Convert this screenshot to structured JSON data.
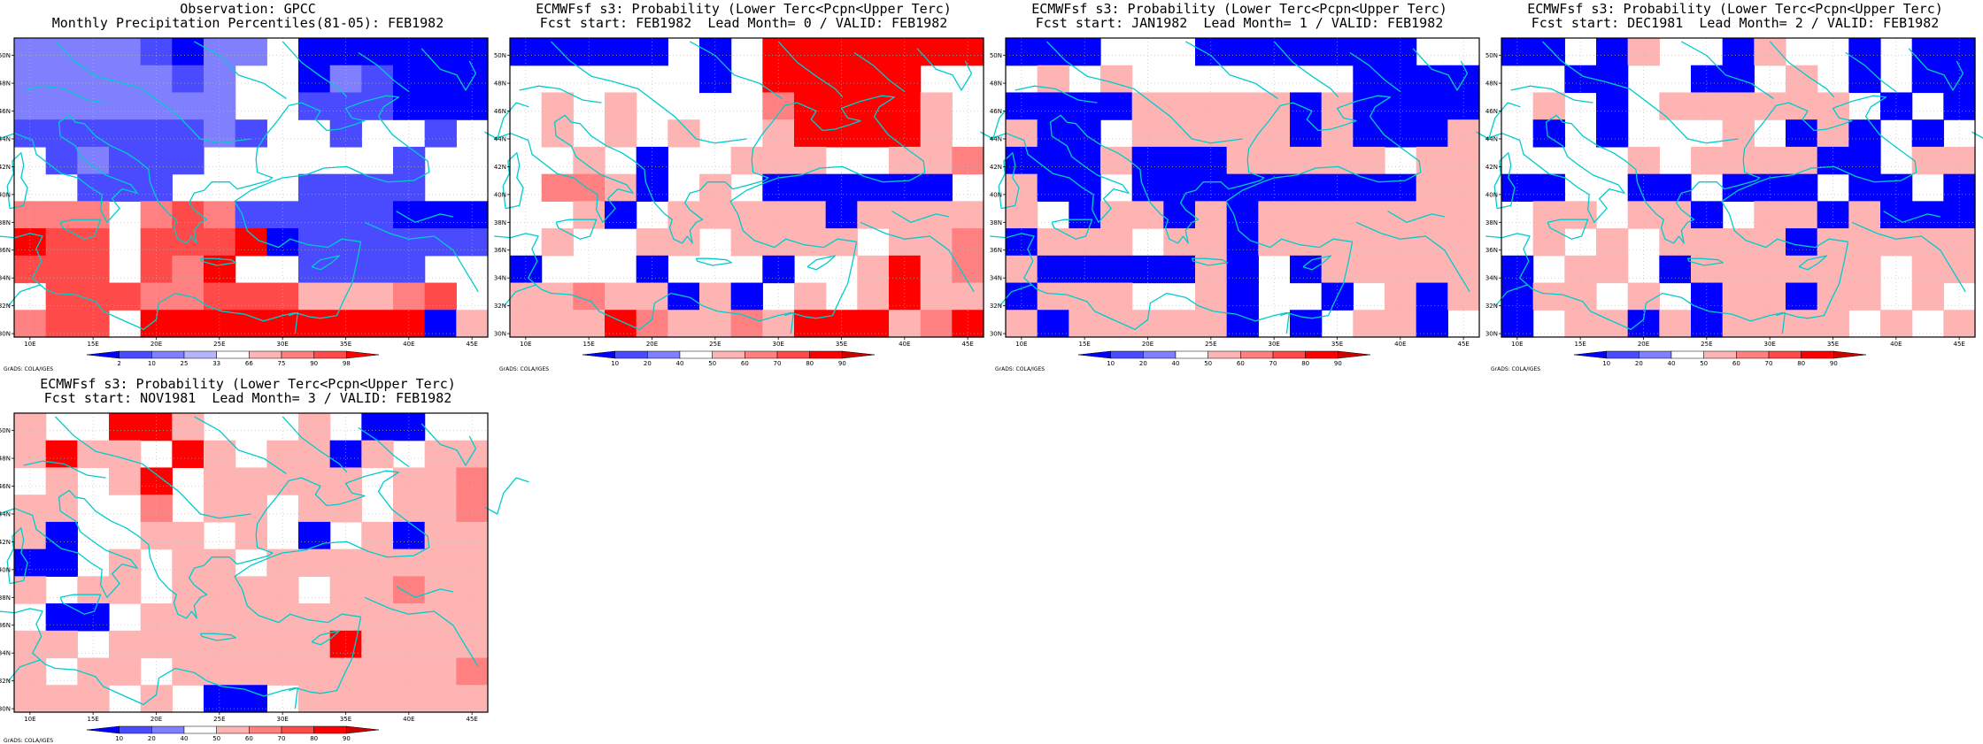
{
  "palette": {
    "blue_dark": "#0000ff",
    "blue_mid": "#4a4aff",
    "blue_light": "#8080ff",
    "blue_pale": "#b4b4ff",
    "red_pale": "#ffb4b4",
    "red_light": "#ff8080",
    "red_mid": "#ff4a4a",
    "red_dark": "#ff0000",
    "coast": "#00cccc",
    "grid": "#bbbbbb"
  },
  "x_ticks": [
    "10E",
    "15E",
    "20E",
    "25E",
    "30E",
    "35E",
    "40E",
    "45E"
  ],
  "y_ticks": [
    "50N",
    "48N",
    "46N",
    "44N",
    "42N",
    "40N",
    "38N",
    "36N",
    "34N",
    "32N",
    "30N"
  ],
  "credit": "GrADS: COLA/IGES",
  "panels": [
    {
      "id": "obs",
      "title1": "Observation: GPCC",
      "title2": "Monthly Precipitation Percentiles(81-05): FEB1982",
      "legend_labels": [
        "2",
        "10",
        "25",
        "33",
        "66",
        "75",
        "90",
        "98"
      ],
      "legend_colors": [
        "#0000ff",
        "#4a4aff",
        "#8080ff",
        "#b4b4ff",
        "#ffffff",
        "#ffb4b4",
        "#ff8080",
        "#ff4a4a",
        "#ff0000"
      ],
      "grid": [
        "ccccbacc0aaaaaa",
        "cccccbc00acbaaa",
        "ccccccc00bbbaaa",
        "bbbbbbcb00b00b0",
        "0bcbbb000000b00",
        "00bbb0000bbbb00",
        "ggg0ghgbbbbbaaa",
        "ihh0hhhiabbbbbb",
        "hhh0hgi00bbbb00",
        "0hhhgghhhfffgh0",
        "ghh0iiiiiiiiiaf"
      ]
    },
    {
      "id": "lead0",
      "title1": "ECMWFsf s3: Probability (Lower Terc<Pcpn<Upper Terc)",
      "title2": "Fcst start: FEB1982  Lead Month= 0 / VALID: FEB1982",
      "legend_labels": [
        "10",
        "20",
        "40",
        "50",
        "60",
        "70",
        "80",
        "90"
      ],
      "legend_colors": [
        "#0000ff",
        "#4a4aff",
        "#8080ff",
        "#ffffff",
        "#ffb4b4",
        "#ff8080",
        "#ff4a4a",
        "#ff0000",
        "#cc0000"
      ],
      "grid": [
        "ccccc0c0hhhhhhh",
        "000000c0hhhhh00",
        "0f0f0000ghhhhf0",
        "0f0f0f00fhhhhf0",
        "00f0c00fff00ffg",
        "0ggfc0f0cccccc0",
        "00fc0fffffcffff",
        "0f00ff0ffff0ffg",
        "c000c000c00fhfg",
        "ffgffcfc0f0fhff",
        "fffhgffgfhhhfgh"
      ]
    },
    {
      "id": "lead1",
      "title1": "ECMWFsf s3: Probability (Lower Terc<Pcpn<Upper Terc)",
      "title2": "Fcst start: JAN1982  Lead Month= 1 / VALID: FEB1982",
      "legend_labels": [
        "10",
        "20",
        "40",
        "50",
        "60",
        "70",
        "80",
        "90"
      ],
      "legend_colors": [
        "#0000ff",
        "#4a4aff",
        "#8080ff",
        "#ffffff",
        "#ffb4b4",
        "#ff8080",
        "#ff4a4a",
        "#ff0000",
        "#cc0000"
      ],
      "grid": [
        "ccc000ccccccc00",
        "0f0f0000000cccc",
        "ccccfffffcfcccc",
        "fcc0fffffcfcccf",
        "cccfcccfffff0ff",
        "fcc0cccccccccff",
        "f0cffcfcfffffff",
        "cfff0ffcfffffff",
        "fcccccfc0cfffff",
        "cfff00fc00c0fcf",
        "fcfffffc0c0ffc0"
      ]
    },
    {
      "id": "lead2",
      "title1": "ECMWFsf s3: Probability (Lower Terc<Pcpn<Upper Terc)",
      "title2": "Fcst start: DEC1981  Lead Month= 2 / VALID: FEB1982",
      "legend_labels": [
        "10",
        "20",
        "40",
        "50",
        "60",
        "70",
        "80",
        "90"
      ],
      "legend_colors": [
        "#0000ff",
        "#4a4aff",
        "#8080ff",
        "#ffffff",
        "#ffb4b4",
        "#ff8080",
        "#ff4a4a",
        "#ff0000",
        "#cc0000"
      ],
      "grid": [
        "cc0cf00cf00c0cc",
        "00cc00cc0f0c0cc",
        "0f0c0ffffff0c0c",
        "0c0c000f0cfc0c0",
        "0000f0ffffcc0ff",
        "cc00cc0ccc0cc0c",
        "0ff0ffc0ffcfccc",
        "0f0f0ffffcfffff",
        "c0ff0cffffff0ff",
        "cff0f0cffcff0f0",
        "c0ffcfcffff0f0f"
      ]
    },
    {
      "id": "lead3",
      "title1": "ECMWFsf s3: Probability (Lower Terc<Pcpn<Upper Terc)",
      "title2": "Fcst start: NOV1981  Lead Month= 3 / VALID: FEB1982",
      "legend_labels": [
        "10",
        "20",
        "40",
        "50",
        "60",
        "70",
        "80",
        "90"
      ],
      "legend_colors": [
        "#0000ff",
        "#4a4aff",
        "#8080ff",
        "#ffffff",
        "#ffb4b4",
        "#ff8080",
        "#ff4a4a",
        "#ff0000",
        "#cc0000"
      ],
      "grid": [
        "f00hhf000f0cc00",
        "fhff0hf0ffcf0ff",
        "0f0fh0fffff0ffg",
        "ff00g0ff0ff0ffg",
        "fc00ff0f0c0fcff",
        "cc0f0ff0fffffff",
        "f0ff0ffff0ffgff",
        "0cc0fffffffffff",
        "ff0fffffffhffff",
        "f0ff0fffffffffg",
        "fff0f0cc0ffffff"
      ]
    }
  ]
}
